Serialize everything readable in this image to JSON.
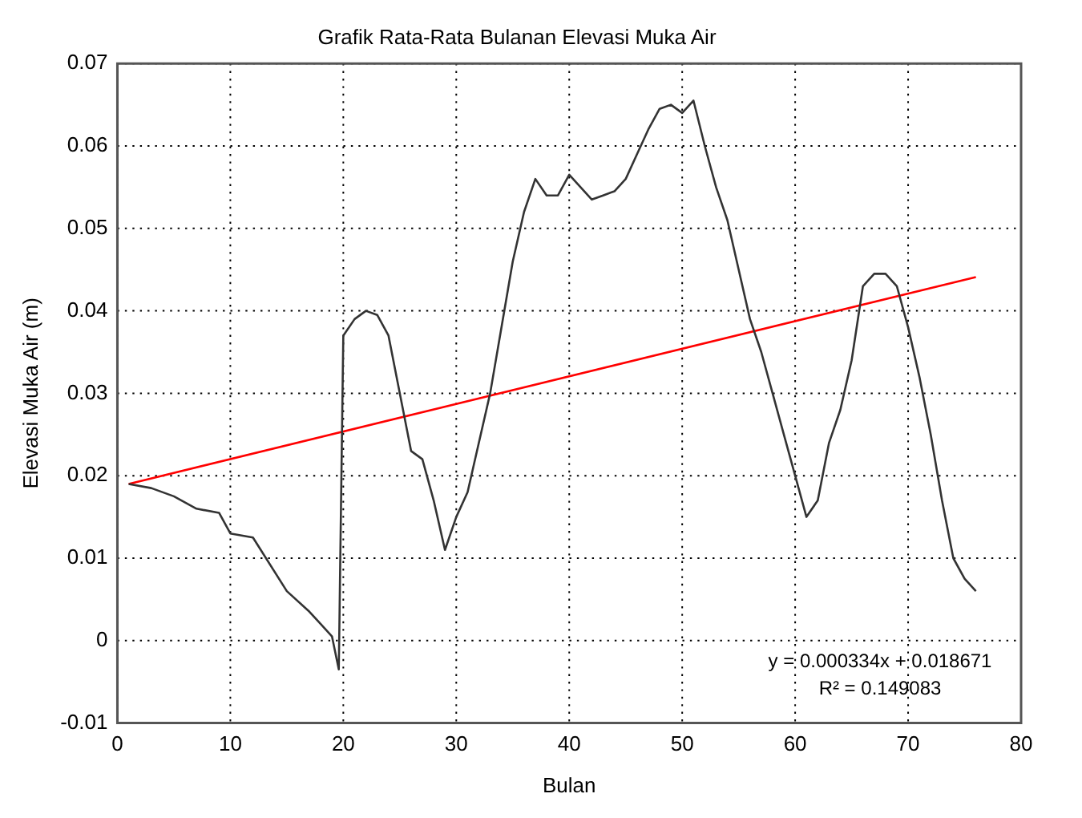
{
  "chart_data": {
    "type": "line",
    "title": "Grafik Rata-Rata Bulanan Elevasi Muka Air",
    "xlabel": "Bulan",
    "ylabel": "Elevasi Muka Air (m)",
    "xlim": [
      0,
      80
    ],
    "xticks": [
      0,
      10,
      20,
      30,
      40,
      50,
      60,
      70,
      80
    ],
    "ylim": [
      -0.01,
      0.07
    ],
    "yticks": [
      -0.01,
      0,
      0.01,
      0.02,
      0.03,
      0.04,
      0.05,
      0.06,
      0.07
    ],
    "grid": true,
    "legend": false,
    "marker": "none",
    "line_style": "solid",
    "annotations": [
      "y = 0.000334x + 0.018671",
      "R² = 0.149083"
    ],
    "series": [
      {
        "color": "#333333",
        "x": [
          1,
          3,
          5,
          7,
          9,
          10,
          12,
          15,
          17,
          18,
          19,
          19.6,
          20,
          21,
          22,
          23,
          24,
          25,
          26,
          27,
          28,
          29,
          30,
          31,
          32,
          33,
          34,
          35,
          36,
          37,
          38,
          39,
          40,
          41,
          42,
          43,
          44,
          45,
          46,
          47,
          48,
          49,
          50,
          51,
          52,
          53,
          54,
          55,
          56,
          57,
          58,
          59,
          60,
          61,
          62,
          63,
          64,
          65,
          66,
          67,
          68,
          69,
          70,
          71,
          72,
          73,
          74,
          75,
          76
        ],
        "values": [
          0.019,
          0.0185,
          0.0175,
          0.016,
          0.0155,
          0.013,
          0.0125,
          0.006,
          0.0035,
          0.002,
          0.0005,
          -0.0035,
          0.037,
          0.039,
          0.04,
          0.0395,
          0.037,
          0.03,
          0.023,
          0.022,
          0.017,
          0.011,
          0.015,
          0.018,
          0.024,
          0.03,
          0.038,
          0.046,
          0.052,
          0.056,
          0.054,
          0.054,
          0.0565,
          0.055,
          0.0535,
          0.054,
          0.0545,
          0.056,
          0.059,
          0.062,
          0.0645,
          0.065,
          0.064,
          0.0655,
          0.06,
          0.055,
          0.051,
          0.045,
          0.039,
          0.035,
          0.03,
          0.025,
          0.02,
          0.015,
          0.017,
          0.024,
          0.028,
          0.034,
          0.043,
          0.0445,
          0.0445,
          0.043,
          0.038,
          0.032,
          0.025,
          0.017,
          0.01,
          0.0075,
          0.006
        ]
      },
      {
        "type": "line",
        "color": "#ff0000",
        "x": [
          1,
          76
        ],
        "values": [
          0.019,
          0.0441
        ]
      }
    ]
  }
}
